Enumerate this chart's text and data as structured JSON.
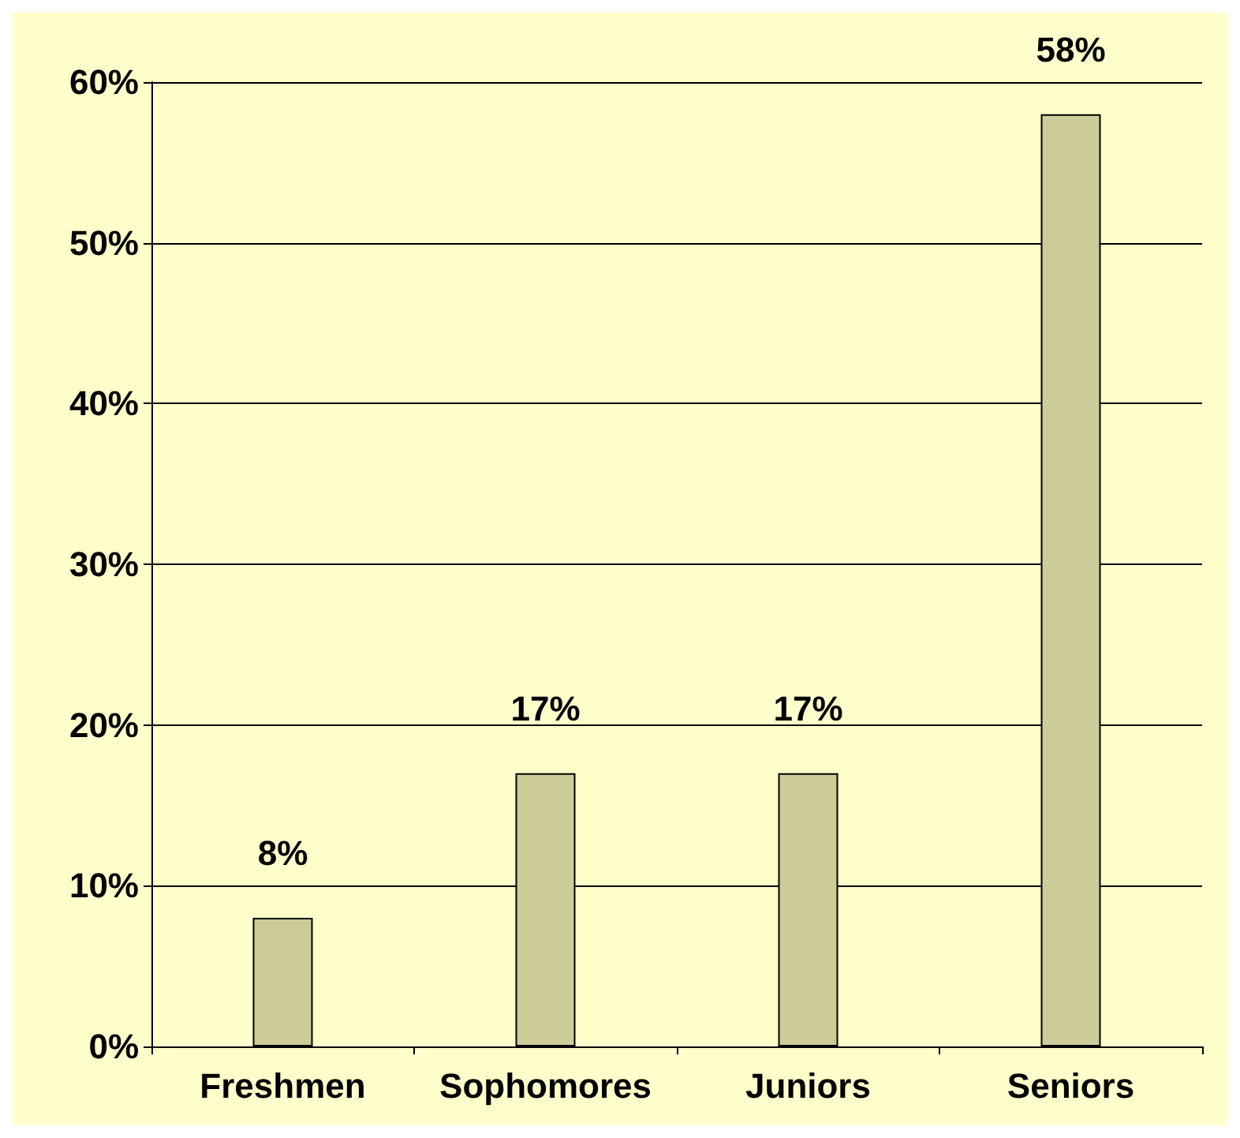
{
  "chart_data": {
    "type": "bar",
    "categories": [
      "Freshmen",
      "Sophomores",
      "Juniors",
      "Seniors"
    ],
    "values": [
      8,
      17,
      17,
      58
    ],
    "color": "#cccc99",
    "value_labels": [
      "8%",
      "17%",
      "17%",
      "58%"
    ],
    "ylim": [
      0,
      60
    ],
    "yticks": [
      {
        "value": 0,
        "label": "0%"
      },
      {
        "value": 10,
        "label": "10%"
      },
      {
        "value": 20,
        "label": "20%"
      },
      {
        "value": 30,
        "label": "30%"
      },
      {
        "value": 40,
        "label": "40%"
      },
      {
        "value": 50,
        "label": "50%"
      },
      {
        "value": 60,
        "label": "60%"
      }
    ],
    "grid": "y"
  }
}
